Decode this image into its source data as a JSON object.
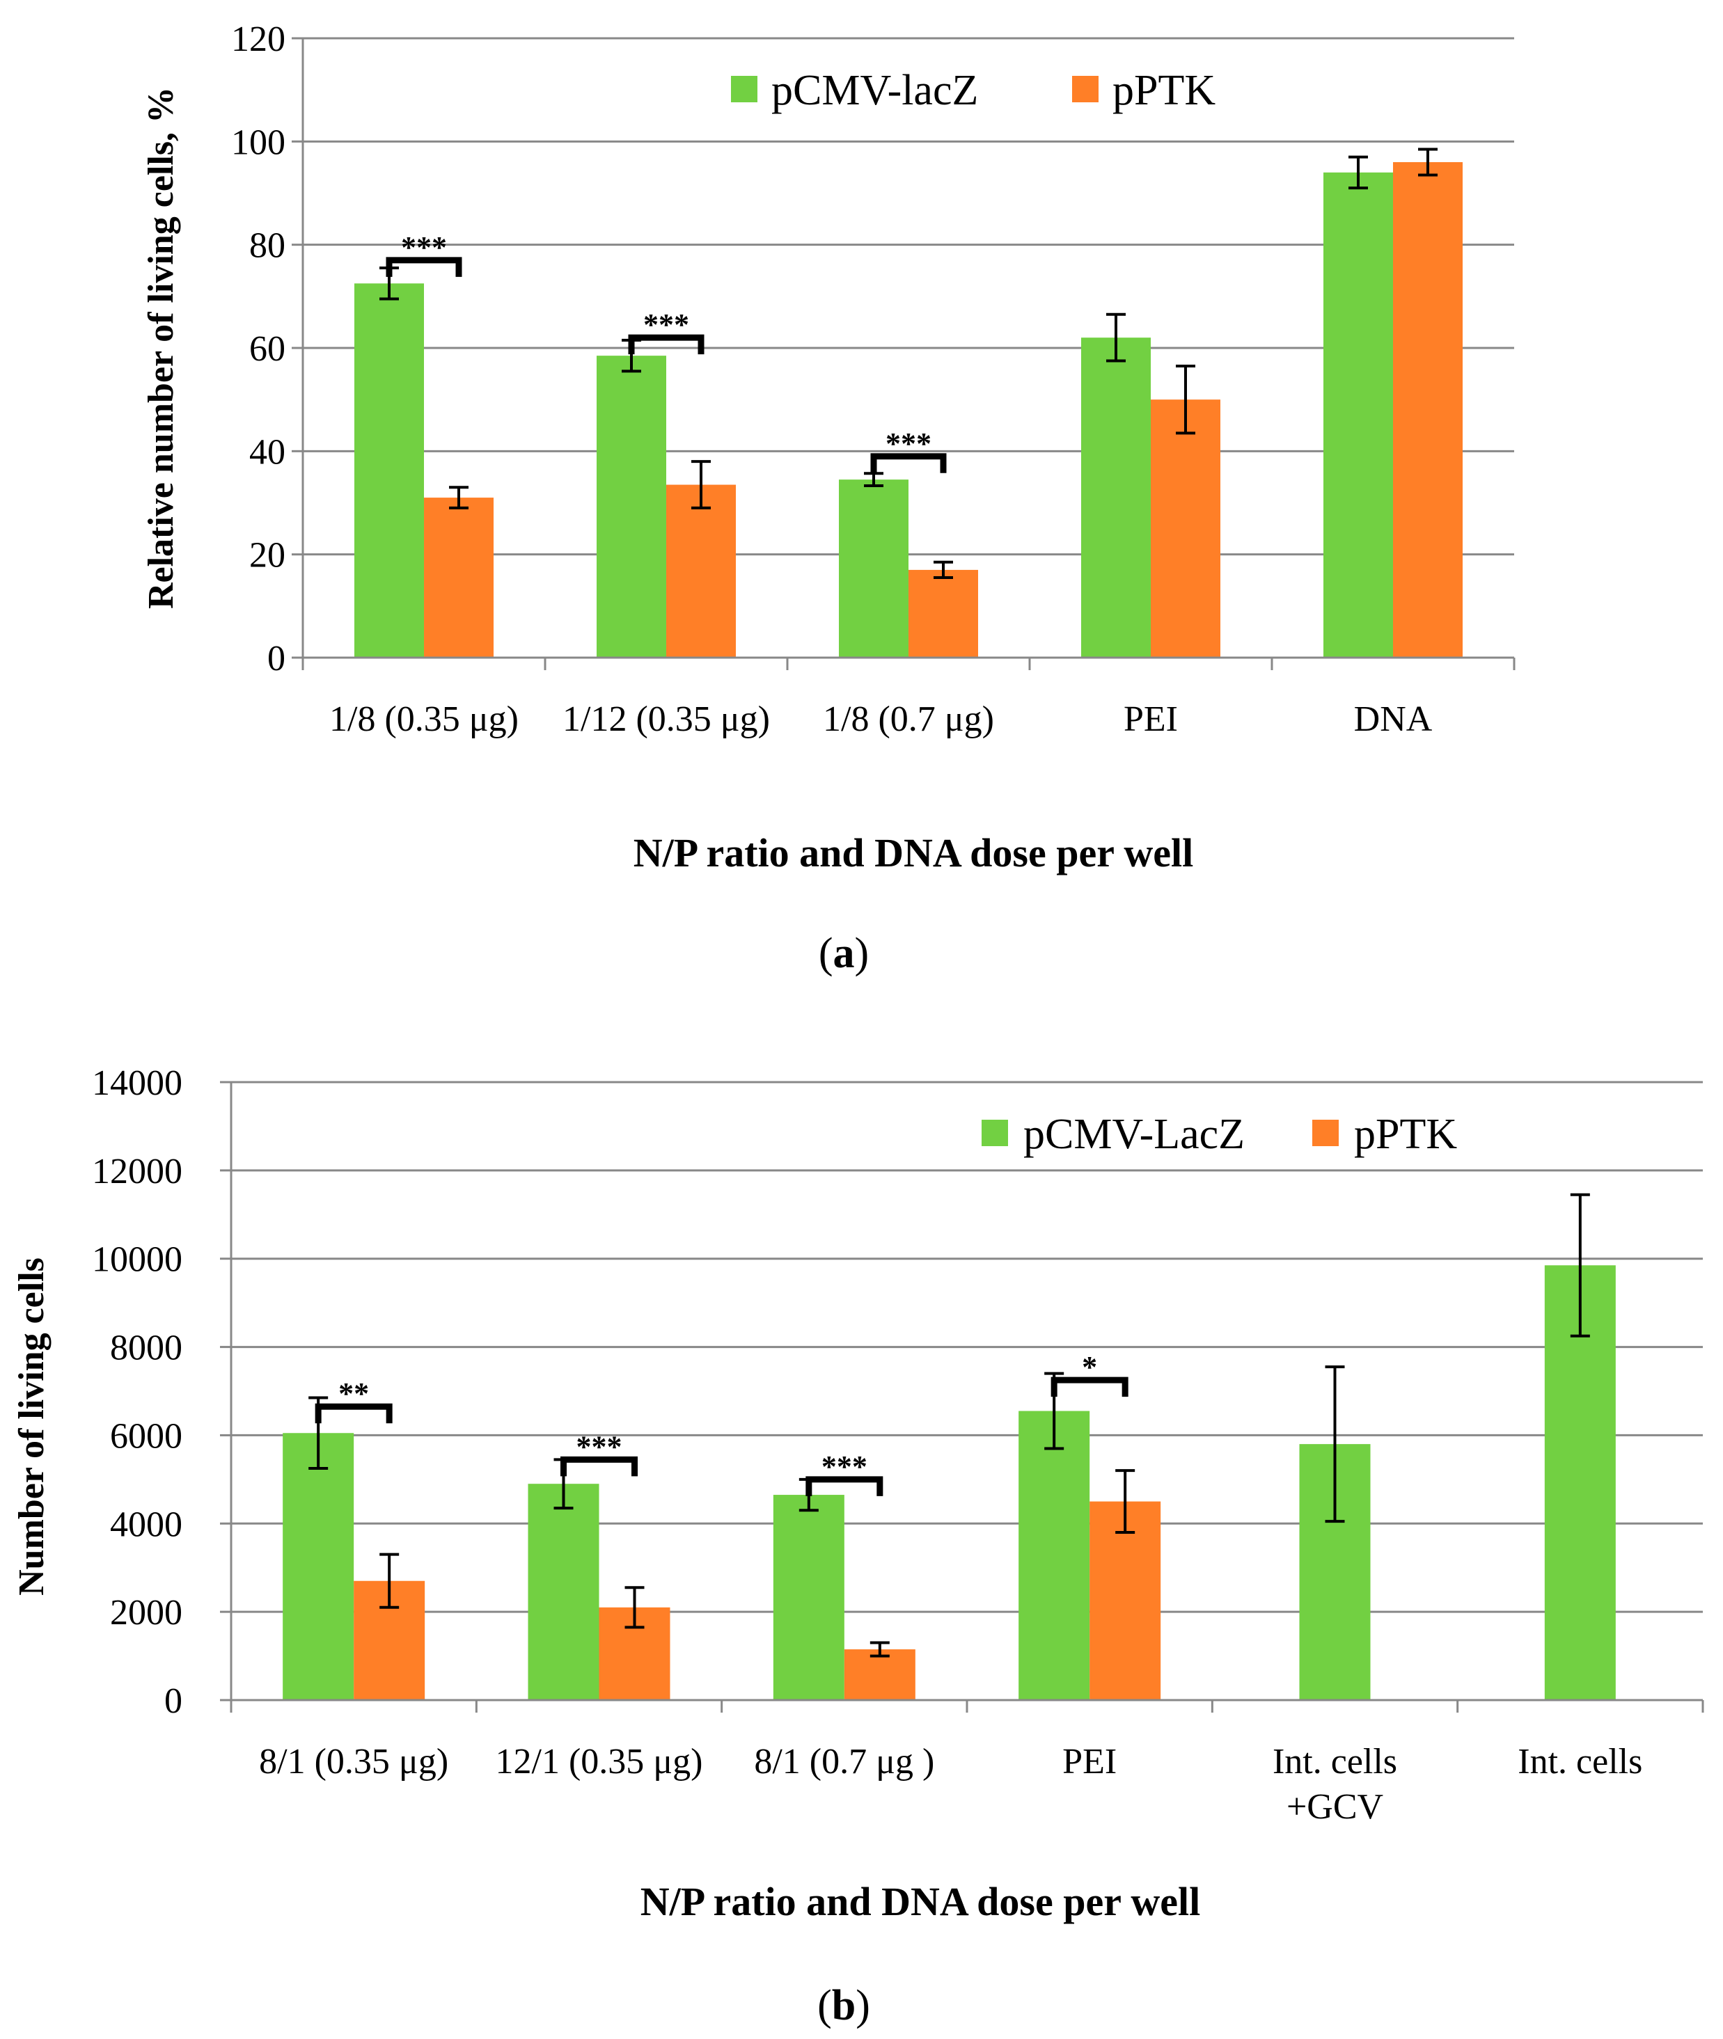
{
  "colors": {
    "series1": "#72d042",
    "series2": "#ff7f27",
    "grid": "#888888",
    "axis": "#888888",
    "errorbar": "#000000"
  },
  "chart_data": [
    {
      "panel_label": "(a)",
      "panel_letter": "a",
      "type": "bar",
      "title": "",
      "xlabel": "N/P ratio and DNA dose per well",
      "ylabel": "Relative number of living cells, %",
      "ylim": [
        0,
        120
      ],
      "yticks": [
        0,
        20,
        40,
        60,
        80,
        100,
        120
      ],
      "grid": true,
      "legend": "top-center",
      "categories": [
        {
          "lines": [
            "1/8 (0.35 μg)"
          ]
        },
        {
          "lines": [
            "1/12 (0.35 μg)"
          ]
        },
        {
          "lines": [
            "1/8 (0.7 μg)"
          ]
        },
        {
          "lines": [
            "PEI"
          ]
        },
        {
          "lines": [
            "DNA"
          ]
        }
      ],
      "series": [
        {
          "name": "pCMV-lacZ",
          "values": [
            72.5,
            58.5,
            34.5,
            62,
            94
          ],
          "errors": [
            3,
            3,
            1.2,
            4.5,
            3
          ]
        },
        {
          "name": "pPTK",
          "values": [
            31,
            33.5,
            17,
            50,
            96
          ],
          "errors": [
            2,
            4.5,
            1.5,
            6.5,
            2.5
          ]
        }
      ],
      "significance": [
        {
          "category": 0,
          "label": "***",
          "level": 77
        },
        {
          "category": 1,
          "label": "***",
          "level": 62
        },
        {
          "category": 2,
          "label": "***",
          "level": 39
        }
      ]
    },
    {
      "panel_label": "(b)",
      "panel_letter": "b",
      "type": "bar",
      "title": "",
      "xlabel": "N/P ratio and DNA dose per well",
      "ylabel": "Number of living cells",
      "ylim": [
        0,
        14000
      ],
      "yticks": [
        0,
        2000,
        4000,
        6000,
        8000,
        10000,
        12000,
        14000
      ],
      "grid": true,
      "legend": "top-right",
      "categories": [
        {
          "lines": [
            "8/1 (0.35 μg)"
          ]
        },
        {
          "lines": [
            "12/1 (0.35 μg)"
          ]
        },
        {
          "lines": [
            "8/1 (0.7 μg )"
          ]
        },
        {
          "lines": [
            "PEI"
          ]
        },
        {
          "lines": [
            "Int. cells",
            "+GCV"
          ]
        },
        {
          "lines": [
            "Int. cells"
          ]
        }
      ],
      "series": [
        {
          "name": "pCMV-LacZ",
          "values": [
            6050,
            4900,
            4650,
            6550,
            5800,
            9850
          ],
          "errors": [
            800,
            550,
            350,
            850,
            1750,
            1600
          ]
        },
        {
          "name": "pPTK",
          "values": [
            2700,
            2100,
            1150,
            4500,
            null,
            null
          ],
          "errors": [
            600,
            450,
            150,
            700,
            null,
            null
          ]
        }
      ],
      "significance": [
        {
          "category": 0,
          "label": "**",
          "level": 6650
        },
        {
          "category": 1,
          "label": "***",
          "level": 5450
        },
        {
          "category": 2,
          "label": "***",
          "level": 5000
        },
        {
          "category": 3,
          "label": "*",
          "level": 7250
        }
      ]
    }
  ]
}
